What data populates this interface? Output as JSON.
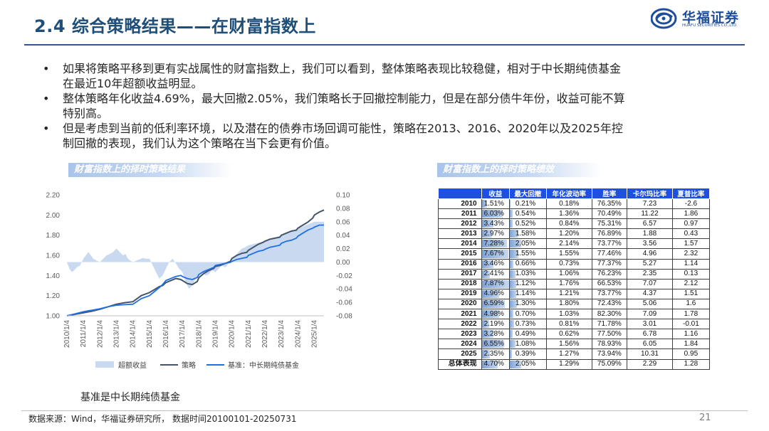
{
  "header": {
    "title": "2.4 综合策略结果——在财富指数上",
    "logo_name": "华福证券",
    "logo_sub": "HUAFU SECURITIES CO.,LTD."
  },
  "bullets": [
    "如果将策略平移到更有实战属性的财富指数上，我们可以看到，整体策略表现比较稳健，相对于中长期纯债基金在最近10年超额收益明显。",
    "整体策略年化收益4.69%，最大回撤2.05%，我们策略长于回撤控制能力，但是在部分债牛年份，收益可能不算特别高。",
    "但是考虑到当前的低利率环境，以及潜在的债券市场回调可能性，策略在2013、2016、2020年以及2025年控制回撤的表现，我们认为这个策略在当下会更有价值。"
  ],
  "section_labels": {
    "chart": "财富指数上的择时策略结果",
    "table": "财富指数上的择时策略绩效"
  },
  "chart_data": {
    "type": "line",
    "title": "",
    "x_labels": [
      "2010/1/4",
      "2011/1/4",
      "2012/1/4",
      "2013/1/4",
      "2014/1/4",
      "2015/1/4",
      "2016/1/4",
      "2017/1/4",
      "2018/1/4",
      "2019/1/4",
      "2020/1/4",
      "2021/1/4",
      "2022/1/4",
      "2023/1/4",
      "2024/1/4",
      "2025/1/4"
    ],
    "x_range": [
      2010.0,
      2025.58
    ],
    "left_axis": {
      "ticks": [
        "2.20",
        "2.00",
        "1.80",
        "1.60",
        "1.40",
        "1.20",
        "1.00"
      ],
      "ylim": [
        1.0,
        2.2
      ]
    },
    "right_axis": {
      "ticks": [
        "0.10",
        "0.08",
        "0.06",
        "0.04",
        "0.02",
        "0.00",
        "-0.02",
        "-0.04",
        "-0.06",
        "-0.08"
      ],
      "ylim": [
        -0.08,
        0.1
      ]
    },
    "series": [
      {
        "name": "超额收益",
        "axis": "right",
        "kind": "area",
        "color": "#c9d9f0",
        "x": [
          2010.0,
          2010.15,
          2010.3,
          2010.45,
          2010.6,
          2010.8,
          2011.0,
          2011.15,
          2011.3,
          2011.45,
          2011.6,
          2011.8,
          2012.0,
          2012.2,
          2012.4,
          2012.6,
          2012.8,
          2013.0,
          2013.2,
          2013.4,
          2013.55,
          2013.7,
          2013.85,
          2014.0,
          2014.2,
          2014.4,
          2014.6,
          2014.8,
          2015.0,
          2015.2,
          2015.4,
          2015.6,
          2015.8,
          2016.0,
          2016.2,
          2016.4,
          2016.6,
          2016.8,
          2017.0,
          2017.2,
          2017.4,
          2017.6,
          2017.8,
          2018.0,
          2018.2,
          2018.4,
          2018.6,
          2018.8,
          2019.0,
          2019.2,
          2019.4,
          2019.6,
          2019.8,
          2020.0,
          2020.2,
          2020.4,
          2020.6,
          2020.8,
          2021.0,
          2021.5,
          2022.0,
          2022.5,
          2023.0,
          2023.5,
          2024.0,
          2024.5,
          2025.0,
          2025.3,
          2025.58
        ],
        "values": [
          0.0,
          -0.01,
          -0.015,
          -0.012,
          -0.008,
          -0.005,
          0.005,
          0.01,
          0.015,
          0.01,
          0.005,
          0.002,
          0.0,
          0.005,
          0.01,
          0.012,
          0.015,
          0.02,
          0.015,
          0.01,
          0.012,
          0.005,
          0.002,
          0.0,
          0.002,
          0.004,
          0.006,
          0.005,
          0.005,
          -0.005,
          -0.015,
          -0.025,
          -0.02,
          -0.01,
          0.0,
          0.005,
          -0.002,
          -0.01,
          -0.015,
          -0.03,
          -0.04,
          -0.035,
          -0.025,
          -0.02,
          -0.015,
          -0.02,
          -0.018,
          -0.012,
          -0.015,
          -0.01,
          -0.005,
          -0.008,
          -0.002,
          0.005,
          0.01,
          0.015,
          0.02,
          0.022,
          0.025,
          0.028,
          0.03,
          0.035,
          0.04,
          0.045,
          0.05,
          0.055,
          0.06,
          0.06,
          0.06
        ]
      },
      {
        "name": "策略",
        "axis": "left",
        "kind": "line",
        "color": "#44546a",
        "x": [
          2010.0,
          2010.5,
          2011.0,
          2011.5,
          2012.0,
          2012.5,
          2013.0,
          2013.5,
          2014.0,
          2014.5,
          2015.0,
          2015.3,
          2015.6,
          2015.8,
          2016.0,
          2016.3,
          2016.6,
          2016.9,
          2017.0,
          2017.3,
          2017.6,
          2017.9,
          2018.0,
          2018.3,
          2018.6,
          2018.9,
          2019.0,
          2019.3,
          2019.6,
          2019.9,
          2020.0,
          2020.3,
          2020.6,
          2020.9,
          2021.0,
          2021.3,
          2021.6,
          2021.9,
          2022.0,
          2022.3,
          2022.6,
          2022.9,
          2023.0,
          2023.3,
          2023.6,
          2023.9,
          2024.0,
          2024.3,
          2024.6,
          2024.9,
          2025.0,
          2025.3,
          2025.58
        ],
        "values": [
          1.0,
          1.015,
          1.03,
          1.045,
          1.065,
          1.09,
          1.115,
          1.13,
          1.14,
          1.2,
          1.23,
          1.26,
          1.29,
          1.3,
          1.33,
          1.35,
          1.37,
          1.36,
          1.35,
          1.32,
          1.31,
          1.34,
          1.38,
          1.42,
          1.45,
          1.47,
          1.49,
          1.5,
          1.52,
          1.54,
          1.57,
          1.6,
          1.62,
          1.63,
          1.65,
          1.68,
          1.71,
          1.73,
          1.74,
          1.76,
          1.77,
          1.78,
          1.8,
          1.82,
          1.84,
          1.85,
          1.87,
          1.9,
          1.93,
          1.97,
          2.0,
          2.03,
          2.05
        ]
      },
      {
        "name": "基准：中长期纯债基金",
        "axis": "left",
        "kind": "line",
        "color": "#1f6fe5",
        "x": [
          2010.0,
          2010.5,
          2011.0,
          2011.5,
          2012.0,
          2012.5,
          2013.0,
          2013.5,
          2014.0,
          2014.5,
          2015.0,
          2015.3,
          2015.6,
          2015.8,
          2016.0,
          2016.3,
          2016.6,
          2016.9,
          2017.0,
          2017.3,
          2017.6,
          2017.9,
          2018.0,
          2018.3,
          2018.6,
          2018.9,
          2019.0,
          2019.3,
          2019.6,
          2019.9,
          2020.0,
          2020.3,
          2020.6,
          2020.9,
          2021.0,
          2021.3,
          2021.6,
          2021.9,
          2022.0,
          2022.3,
          2022.6,
          2022.9,
          2023.0,
          2023.3,
          2023.6,
          2023.9,
          2024.0,
          2024.3,
          2024.6,
          2024.9,
          2025.0,
          2025.3,
          2025.58
        ],
        "values": [
          1.0,
          1.02,
          1.04,
          1.055,
          1.07,
          1.09,
          1.105,
          1.11,
          1.115,
          1.17,
          1.2,
          1.24,
          1.28,
          1.31,
          1.35,
          1.37,
          1.39,
          1.4,
          1.39,
          1.37,
          1.36,
          1.38,
          1.41,
          1.44,
          1.46,
          1.48,
          1.5,
          1.51,
          1.52,
          1.53,
          1.54,
          1.56,
          1.57,
          1.58,
          1.6,
          1.62,
          1.64,
          1.65,
          1.66,
          1.68,
          1.69,
          1.7,
          1.72,
          1.74,
          1.75,
          1.77,
          1.79,
          1.82,
          1.85,
          1.87,
          1.88,
          1.9,
          1.9
        ]
      }
    ],
    "grid": false,
    "legend_placement": "bottom"
  },
  "benchmark_note": "基准是中长期纯债基金",
  "table": {
    "headers": [
      "",
      "收益",
      "最大回撤",
      "年化波动率",
      "胜率",
      "卡尔玛比率",
      "夏普比率"
    ],
    "max_return": 7.87,
    "max_drawdown": 2.05,
    "rows": [
      {
        "year": "2010",
        "ret": "1.51%",
        "ret_v": 1.51,
        "dd": "0.21%",
        "dd_v": 0.21,
        "vol": "0.18%",
        "win": "76.35%",
        "calmar": "7.23",
        "sharpe": "-2.6"
      },
      {
        "year": "2011",
        "ret": "6.03%",
        "ret_v": 6.03,
        "dd": "0.54%",
        "dd_v": 0.54,
        "vol": "1.36%",
        "win": "70.49%",
        "calmar": "11.22",
        "sharpe": "1.86"
      },
      {
        "year": "2012",
        "ret": "3.43%",
        "ret_v": 3.43,
        "dd": "0.52%",
        "dd_v": 0.52,
        "vol": "0.84%",
        "win": "75.31%",
        "calmar": "6.57",
        "sharpe": "0.97"
      },
      {
        "year": "2013",
        "ret": "2.97%",
        "ret_v": 2.97,
        "dd": "1.58%",
        "dd_v": 1.58,
        "vol": "1.20%",
        "win": "76.89%",
        "calmar": "1.88",
        "sharpe": "0.43"
      },
      {
        "year": "2014",
        "ret": "7.28%",
        "ret_v": 7.28,
        "dd": "2.05%",
        "dd_v": 2.05,
        "vol": "2.14%",
        "win": "73.77%",
        "calmar": "3.56",
        "sharpe": "1.57"
      },
      {
        "year": "2015",
        "ret": "7.67%",
        "ret_v": 7.67,
        "dd": "1.55%",
        "dd_v": 1.55,
        "vol": "1.55%",
        "win": "77.46%",
        "calmar": "4.96",
        "sharpe": "2.32"
      },
      {
        "year": "2016",
        "ret": "3.46%",
        "ret_v": 3.46,
        "dd": "0.66%",
        "dd_v": 0.66,
        "vol": "0.73%",
        "win": "77.37%",
        "calmar": "5.27",
        "sharpe": "1.14"
      },
      {
        "year": "2017",
        "ret": "2.41%",
        "ret_v": 2.41,
        "dd": "1.03%",
        "dd_v": 1.03,
        "vol": "1.06%",
        "win": "76.23%",
        "calmar": "2.35",
        "sharpe": "0.13"
      },
      {
        "year": "2018",
        "ret": "7.87%",
        "ret_v": 7.87,
        "dd": "1.12%",
        "dd_v": 1.12,
        "vol": "1.76%",
        "win": "66.53%",
        "calmar": "7.07",
        "sharpe": "2.12"
      },
      {
        "year": "2019",
        "ret": "4.96%",
        "ret_v": 4.96,
        "dd": "1.14%",
        "dd_v": 1.14,
        "vol": "1.21%",
        "win": "73.77%",
        "calmar": "4.37",
        "sharpe": "1.51"
      },
      {
        "year": "2020",
        "ret": "6.59%",
        "ret_v": 6.59,
        "dd": "1.30%",
        "dd_v": 1.3,
        "vol": "1.80%",
        "win": "72.43%",
        "calmar": "5.06",
        "sharpe": "1.6"
      },
      {
        "year": "2021",
        "ret": "4.98%",
        "ret_v": 4.98,
        "dd": "0.70%",
        "dd_v": 0.7,
        "vol": "1.03%",
        "win": "82.30%",
        "calmar": "7.09",
        "sharpe": "1.78"
      },
      {
        "year": "2022",
        "ret": "2.19%",
        "ret_v": 2.19,
        "dd": "0.73%",
        "dd_v": 0.73,
        "vol": "0.81%",
        "win": "71.78%",
        "calmar": "3.01",
        "sharpe": "-0.01"
      },
      {
        "year": "2023",
        "ret": "3.28%",
        "ret_v": 3.28,
        "dd": "0.49%",
        "dd_v": 0.49,
        "vol": "0.62%",
        "win": "77.50%",
        "calmar": "6.78",
        "sharpe": "1.16"
      },
      {
        "year": "2024",
        "ret": "6.55%",
        "ret_v": 6.55,
        "dd": "1.08%",
        "dd_v": 1.08,
        "vol": "1.56%",
        "win": "78.93%",
        "calmar": "6.05",
        "sharpe": "1.84"
      },
      {
        "year": "2025",
        "ret": "2.35%",
        "ret_v": 2.35,
        "dd": "0.39%",
        "dd_v": 0.39,
        "vol": "1.27%",
        "win": "73.94%",
        "calmar": "10.31",
        "sharpe": "0.95"
      },
      {
        "year": "总体表现",
        "ret": "4.70%",
        "ret_v": 4.7,
        "dd": "2.05%",
        "dd_v": 2.05,
        "vol": "1.29%",
        "win": "75.09%",
        "calmar": "2.29",
        "sharpe": "1.28"
      }
    ]
  },
  "footer": {
    "source": "数据来源：Wind，华福证券研究所， 数据时间20100101-20250731",
    "page_number": "21"
  },
  "colors": {
    "title": "#1f4e79",
    "table_header": "#1f4fe0",
    "bar_fill": "#7ea3d8"
  }
}
